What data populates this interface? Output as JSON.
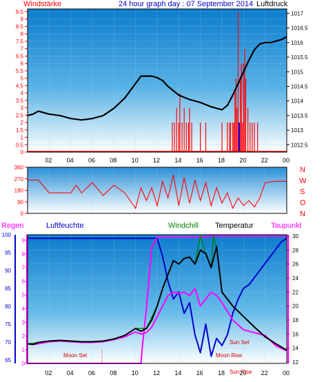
{
  "title": "24 hour graph day : 07 September 2014",
  "colors": {
    "wind": "#ff0000",
    "pressure": "#000000",
    "humidity": "#0000cc",
    "rain": "#ff00ff",
    "windchill": "#008000",
    "temperature": "#000000",
    "dewpoint": "#ff00ff",
    "gust": "#0000ff"
  },
  "x_ticks": [
    "02",
    "04",
    "06",
    "08",
    "10",
    "12",
    "14",
    "16",
    "18",
    "20",
    "22",
    "00"
  ],
  "chart_data": [
    {
      "type": "line",
      "name": "wind-pressure",
      "left_label": "Windstärke",
      "right_label": "Luftdruck",
      "y_left_ticks": [
        "0",
        "0.5",
        "1",
        "1.5",
        "2",
        "2.5",
        "3",
        "3.5",
        "4",
        "4.5",
        "5",
        "5.5",
        "6",
        "6.5",
        "7",
        "7.5",
        "8",
        "8.5",
        "9",
        "9.5"
      ],
      "y_left_range": [
        0,
        9.5
      ],
      "y_right_ticks": [
        "1012.5",
        "1013",
        "1013.5",
        "1014",
        "1014.5",
        "1015",
        "1015.5",
        "1016",
        "1016.5",
        "1017"
      ],
      "y_right_range": [
        1012.25,
        1017.15
      ],
      "x_range": [
        0,
        24
      ],
      "pressure": {
        "x": [
          0,
          0.5,
          1,
          1.5,
          2,
          3,
          4,
          5,
          6,
          7,
          8,
          9,
          10,
          10.5,
          11,
          11.5,
          12,
          12.5,
          13,
          14,
          15,
          16,
          17,
          18,
          18.5,
          19,
          19.5,
          20,
          20.5,
          21,
          21.5,
          22,
          22.5,
          23,
          23.5,
          24
        ],
        "values": [
          1013.5,
          1013.55,
          1013.65,
          1013.6,
          1013.55,
          1013.5,
          1013.4,
          1013.35,
          1013.4,
          1013.5,
          1013.75,
          1014.1,
          1014.6,
          1014.85,
          1014.85,
          1014.85,
          1014.8,
          1014.7,
          1014.5,
          1014.2,
          1014.05,
          1013.95,
          1013.8,
          1013.7,
          1013.85,
          1014.2,
          1014.6,
          1015.0,
          1015.4,
          1015.75,
          1015.95,
          1016.0,
          1016.0,
          1016.05,
          1016.1,
          1016.2
        ]
      },
      "wind_bars": {
        "x": [
          13.4,
          13.6,
          13.8,
          14.0,
          14.1,
          14.3,
          14.5,
          14.7,
          14.9,
          15.0,
          15.2,
          16.0,
          16.5,
          18.0,
          18.5,
          18.7,
          18.8,
          19.0,
          19.1,
          19.2,
          19.3,
          19.4,
          19.5,
          19.6,
          19.7,
          19.8,
          19.9,
          20.0,
          20.1,
          20.2,
          20.4,
          20.6,
          20.8,
          21.0,
          21.3
        ],
        "values": [
          2,
          2,
          3,
          2,
          4,
          2,
          3,
          2,
          2,
          3,
          2,
          2,
          2,
          2,
          2,
          2,
          2,
          2,
          2,
          4,
          5,
          3,
          9.5,
          2,
          5,
          6,
          2,
          6,
          7,
          5,
          3,
          2,
          2,
          2,
          2
        ]
      },
      "gust_bars": {
        "x": [
          19.6
        ],
        "values": [
          2
        ]
      }
    },
    {
      "type": "line",
      "name": "wind-direction",
      "y_left_ticks": [
        "0",
        "90",
        "180",
        "270",
        "360"
      ],
      "y_range": [
        0,
        360
      ],
      "right_compass": [
        "N",
        "W",
        "S",
        "O",
        "N"
      ],
      "x": [
        0,
        1,
        2,
        3,
        4,
        4.5,
        5,
        6,
        7,
        8,
        9,
        10,
        10.5,
        11,
        11.5,
        12,
        12.5,
        13,
        13.5,
        14,
        14.5,
        15,
        15.5,
        16,
        16.5,
        17,
        17.5,
        18,
        18.5,
        19,
        19.5,
        20,
        20.5,
        21,
        21.5,
        22,
        23,
        24
      ],
      "values": [
        260,
        260,
        160,
        160,
        160,
        220,
        160,
        240,
        140,
        220,
        160,
        40,
        200,
        100,
        200,
        60,
        250,
        120,
        300,
        60,
        280,
        80,
        260,
        100,
        240,
        60,
        200,
        80,
        160,
        40,
        120,
        60,
        100,
        50,
        120,
        240,
        250,
        250
      ]
    },
    {
      "type": "line",
      "name": "temperature-humidity",
      "left_label": "Regen",
      "left_label_2": "Luftfeuchte",
      "legend": [
        "Windchill",
        "Temperatur",
        "Taupunkt"
      ],
      "y_rain_ticks": [
        "0",
        "1",
        "2",
        "3",
        "4",
        "5",
        "6",
        "7",
        "8",
        "9"
      ],
      "y_humidity_ticks": [
        "65",
        "70",
        "75",
        "80",
        "85",
        "90",
        "95",
        "100"
      ],
      "y_humidity_range": [
        64,
        100
      ],
      "y_temp_ticks": [
        "12",
        "14",
        "16",
        "18",
        "20",
        "22",
        "24",
        "26",
        "28",
        "30"
      ],
      "y_temp_range": [
        11.8,
        30.2
      ],
      "annotations": [
        "Moon Set",
        "Sun Set",
        "Moon Rise",
        "Sun Rise"
      ],
      "temperature": {
        "x": [
          0,
          0.5,
          1,
          2,
          3,
          4,
          5,
          6,
          7,
          8,
          9,
          10,
          10.5,
          11,
          11.5,
          12,
          12.5,
          13,
          13.5,
          14,
          14.5,
          15,
          15.5,
          16,
          16.5,
          17,
          17.5,
          18,
          19,
          20,
          21,
          22,
          23,
          24
        ],
        "values": [
          14.6,
          14.5,
          14.8,
          15.0,
          15.1,
          15.0,
          14.9,
          14.9,
          15.0,
          15.3,
          15.8,
          16.8,
          16.4,
          16.8,
          18.0,
          20.0,
          22.5,
          24.5,
          26.5,
          26.0,
          26.8,
          27.0,
          26.0,
          28.0,
          27.5,
          25.5,
          28.5,
          22.0,
          20.0,
          18.5,
          17.0,
          15.6,
          14.6,
          13.7
        ]
      },
      "dewpoint": {
        "x": [
          0,
          0.5,
          1,
          2,
          3,
          4,
          5,
          6,
          7,
          8,
          9,
          10,
          10.5,
          11,
          11.5,
          12,
          12.5,
          13,
          13.5,
          14,
          14.5,
          15,
          15.5,
          16,
          16.5,
          17,
          17.5,
          18,
          19,
          20,
          21,
          22,
          23,
          24
        ],
        "values": [
          14.6,
          14.5,
          14.6,
          14.9,
          15.0,
          14.9,
          14.8,
          14.8,
          14.9,
          15.2,
          15.6,
          16.3,
          16.0,
          16.2,
          17.0,
          18.5,
          20.0,
          21.5,
          22.0,
          21.8,
          22.0,
          21.5,
          22.5,
          20.0,
          21.0,
          22.0,
          21.5,
          20.5,
          18.0,
          16.6,
          16.2,
          15.8,
          14.3,
          13.6
        ]
      },
      "windchill": {
        "x": [
          0,
          1,
          2,
          3,
          4,
          5,
          6,
          7,
          8,
          9,
          10,
          11,
          12,
          12.5,
          13,
          13.5,
          14,
          14.5,
          15,
          15.5,
          16,
          16.5,
          17,
          17.2,
          17.5,
          18,
          19,
          20,
          21,
          22,
          23,
          24
        ],
        "values": [
          14.6,
          14.8,
          15.0,
          15.1,
          15.0,
          14.9,
          14.9,
          15.0,
          15.3,
          15.8,
          16.8,
          16.8,
          20.0,
          22.5,
          24.5,
          26.5,
          26.0,
          26.8,
          27.0,
          26.0,
          30.0,
          27.5,
          25.5,
          30.0,
          28.5,
          22.0,
          20.0,
          18.5,
          17.0,
          15.6,
          14.6,
          13.7
        ]
      },
      "humidity": {
        "x": [
          0,
          1,
          2,
          3,
          4,
          5,
          6,
          7,
          8,
          9,
          10,
          11,
          12,
          12.5,
          13,
          13.5,
          14,
          14.5,
          15,
          15.5,
          16,
          16.5,
          17,
          17.5,
          18,
          18.5,
          19,
          19.5,
          20,
          20.5,
          21,
          21.5,
          22,
          22.5,
          23,
          23.5,
          24
        ],
        "values": [
          99,
          99,
          99,
          99,
          99,
          99,
          99,
          99,
          99,
          99,
          99,
          99,
          99,
          94,
          87,
          82,
          84,
          78,
          81,
          72,
          67,
          75,
          66,
          71,
          69,
          72,
          78,
          82,
          85,
          86,
          88,
          90,
          92,
          94,
          96,
          98,
          99
        ]
      },
      "rain": {
        "x": [
          0,
          10.5,
          10.6,
          11,
          11.5,
          12,
          13,
          14,
          15,
          16,
          17,
          18,
          19,
          20,
          21,
          22,
          23,
          24
        ],
        "values": [
          0,
          0,
          1,
          4,
          8.5,
          9.2,
          9.2,
          9.2,
          9.2,
          9.2,
          9.3,
          9.3,
          9.3,
          9.3,
          9.3,
          9.3,
          9.3,
          9.3
        ]
      }
    }
  ]
}
